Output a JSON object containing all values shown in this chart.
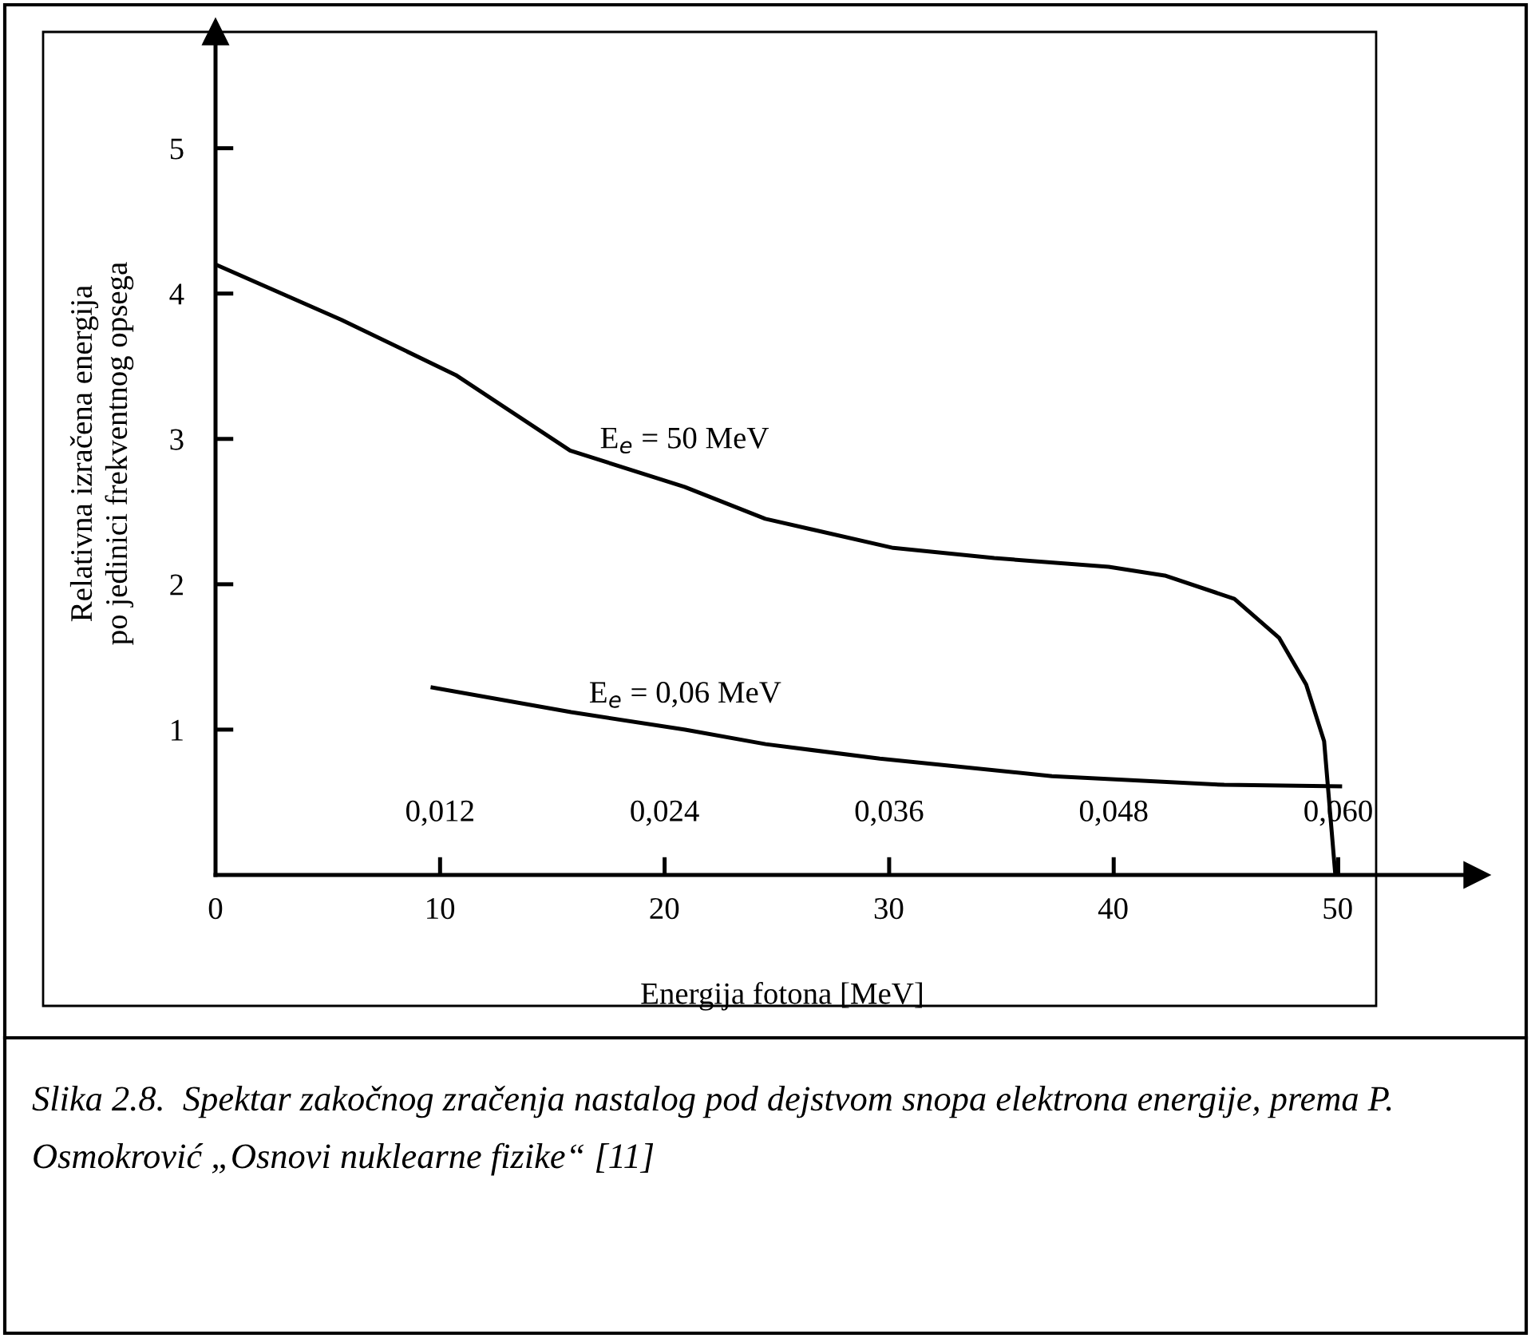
{
  "chart_data": {
    "type": "line",
    "xlabel": "Energija fotona [MeV]",
    "ylabel": "Relativna izračena energija\npo jedinici frekventnog opsega",
    "xlim": [
      0,
      56.2
    ],
    "xticks": [
      0,
      10,
      20,
      30,
      40,
      50
    ],
    "x2lim": [
      0,
      0.0674
    ],
    "x2ticks": [
      {
        "value": 0.012,
        "label": "0,012"
      },
      {
        "value": 0.024,
        "label": "0,024"
      },
      {
        "value": 0.036,
        "label": "0,036"
      },
      {
        "value": 0.048,
        "label": "0,048"
      },
      {
        "value": 0.06,
        "label": "0,060"
      }
    ],
    "ylim": [
      0,
      5.8
    ],
    "yticks": [
      1,
      2,
      3,
      4,
      5
    ],
    "series": [
      {
        "name": "E$_{e}$ = 50 MeV",
        "color": "#000000",
        "x": [
          0,
          5.6,
          10.7,
          15.8,
          20.9,
          24.5,
          30.2,
          34.7,
          39.8,
          42.3,
          45.4,
          47.4,
          48.6,
          49.4,
          49.9
        ],
        "values": [
          4.2,
          3.82,
          3.44,
          2.92,
          2.67,
          2.45,
          2.25,
          2.18,
          2.12,
          2.06,
          1.9,
          1.63,
          1.31,
          0.92,
          0
        ]
      },
      {
        "name": "E$_{e}$ = 0,06 MeV",
        "color": "#000000",
        "axis": "x2",
        "x": [
          0.0116,
          0.019,
          0.0251,
          0.0294,
          0.0355,
          0.0447,
          0.0539,
          0.0601
        ],
        "values": [
          1.29,
          1.12,
          1.0,
          0.9,
          0.8,
          0.68,
          0.62,
          0.61
        ]
      }
    ],
    "annotations": [
      "Slika 2.8.  Spektar zakočnog zračenja nastalog pod dejstvom snopa elektrona energije, prema P. Osmokrović „Osnovi nuklearne fizike“ [11]"
    ]
  }
}
